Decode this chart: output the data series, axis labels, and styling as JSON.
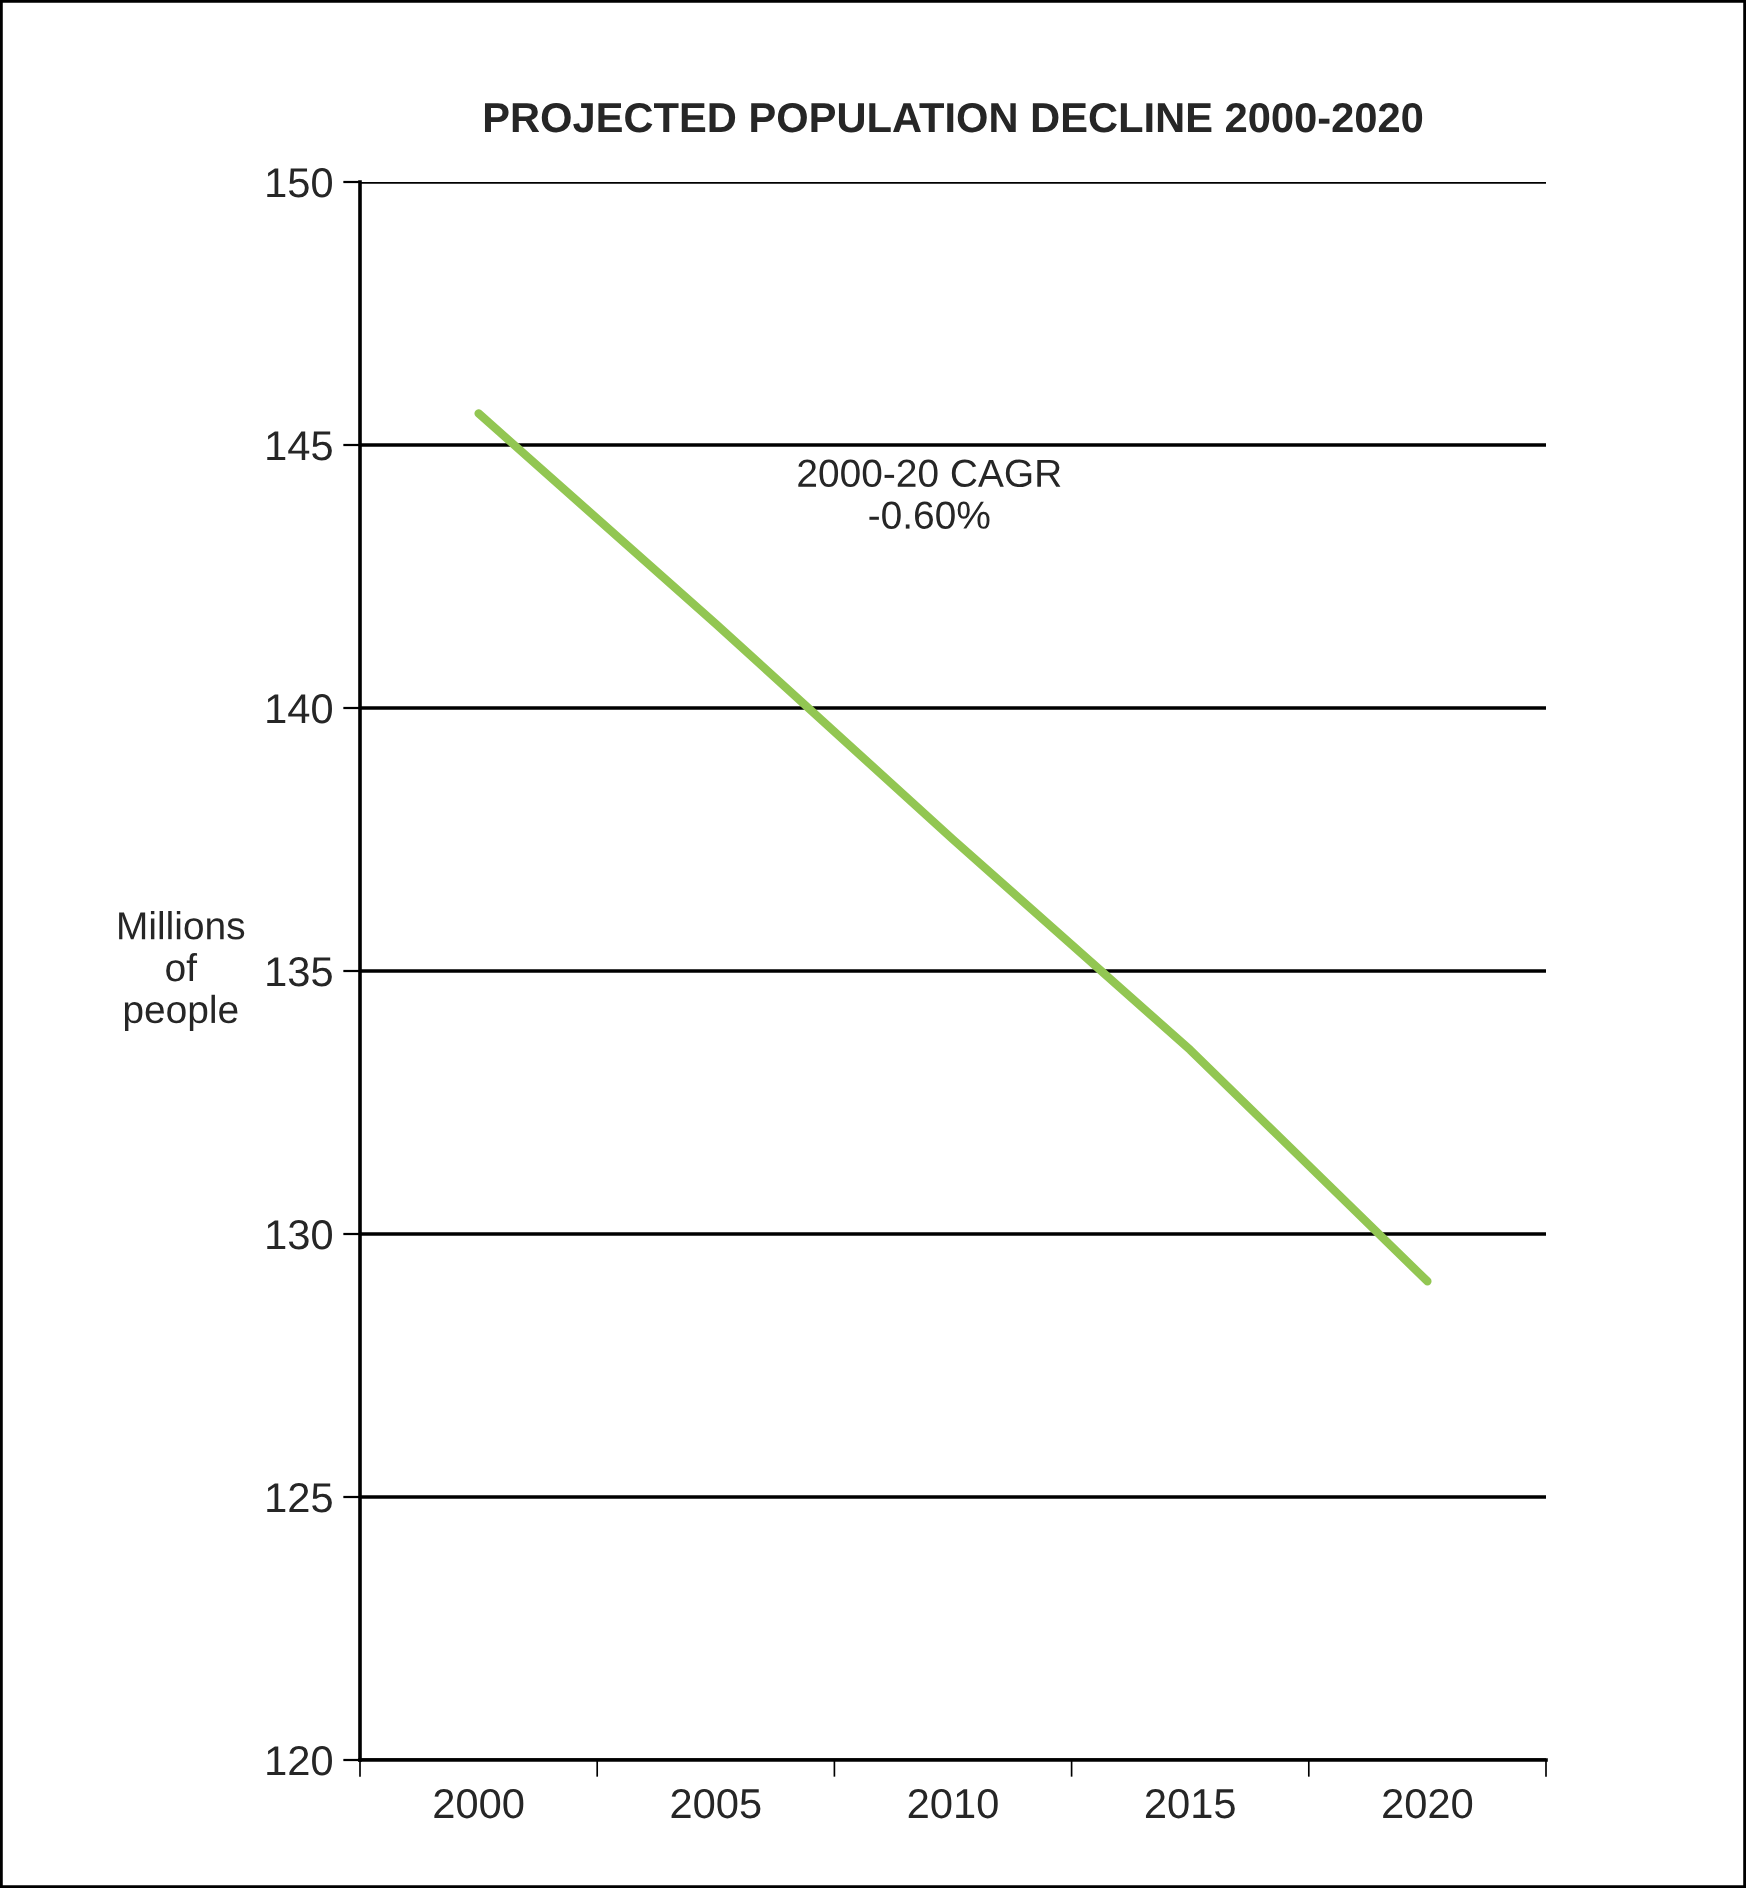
{
  "chart_data": {
    "type": "line",
    "title": "PROJECTED POPULATION DECLINE 2000-2020",
    "ylabel": "Millions\nof\npeople",
    "categories": [
      "2000",
      "2005",
      "2010",
      "2015",
      "2020"
    ],
    "series": [
      {
        "color": "#92c652",
        "values": [
          145.6,
          141.6,
          137.5,
          133.5,
          129.1
        ]
      }
    ],
    "ylim": [
      120,
      150
    ],
    "yticks": [
      120,
      125,
      130,
      135,
      140,
      145,
      150
    ],
    "grid": "y",
    "legend": false,
    "marker": "none",
    "line_style": "solid",
    "annotations": [
      "2000-20 CAGR\n-0.60%"
    ]
  }
}
